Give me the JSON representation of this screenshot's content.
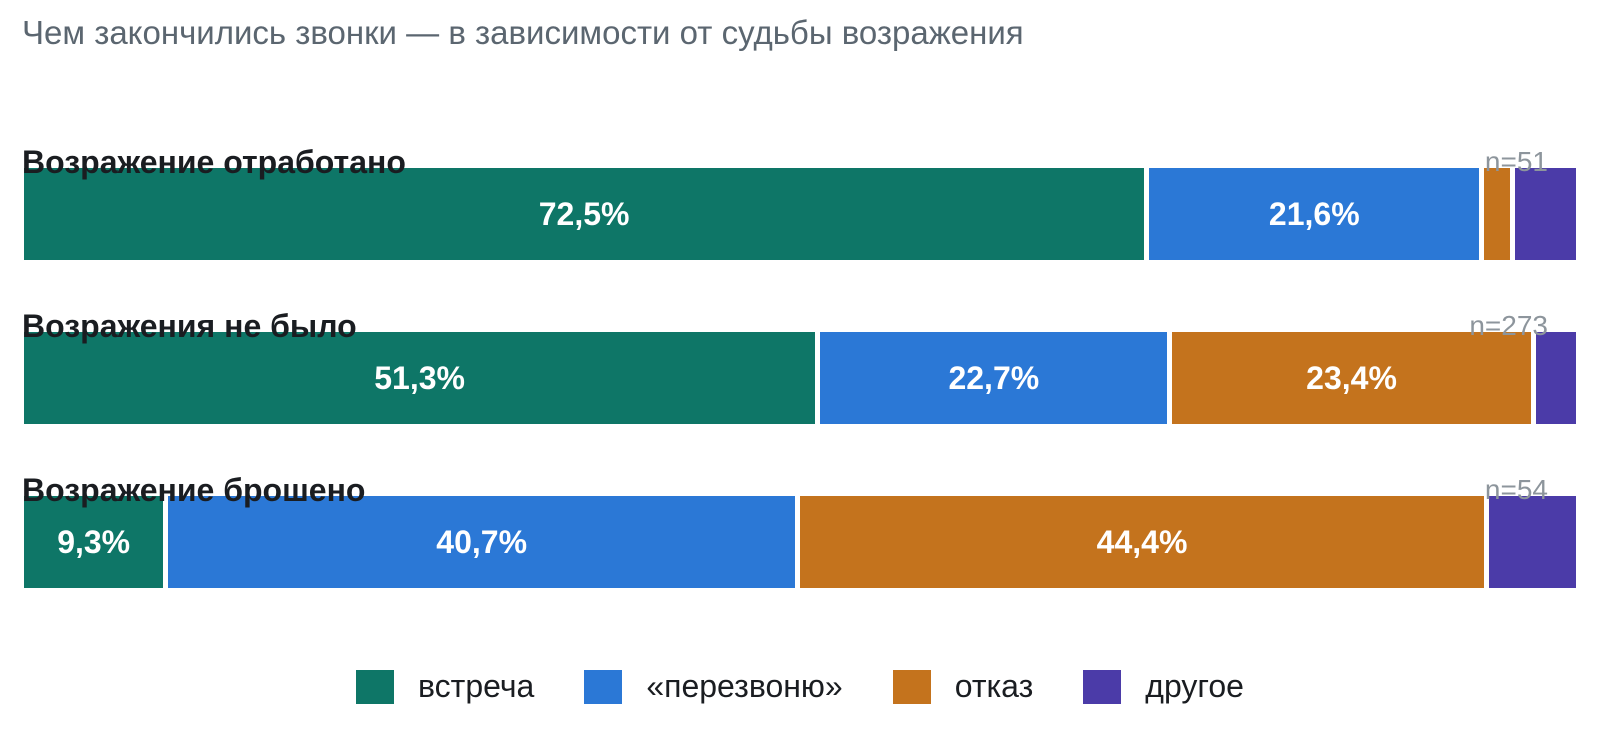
{
  "chart_data": {
    "type": "bar",
    "orientation": "horizontal",
    "stacked": "percent",
    "title": "Чем закончились звонки — в зависимости от судьбы возражения",
    "categories": [
      "Возражение отработано",
      "Возражения не было",
      "Возражение брошено"
    ],
    "sample_sizes": [
      "n=51",
      "n=273",
      "n=54"
    ],
    "series": [
      {
        "name": "встреча",
        "color": "#0e7667",
        "values": [
          72.5,
          51.3,
          9.3
        ],
        "labels": [
          "72,5%",
          "51,3%",
          "9,3%"
        ]
      },
      {
        "name": "«перезвоню»",
        "color": "#2b78d6",
        "values": [
          21.6,
          22.7,
          40.7
        ],
        "labels": [
          "21,6%",
          "22,7%",
          "40,7%"
        ]
      },
      {
        "name": "отказ",
        "color": "#c4731d",
        "values": [
          2.0,
          23.4,
          44.4
        ],
        "labels": [
          "",
          "23,4%",
          "44,4%"
        ]
      },
      {
        "name": "другое",
        "color": "#4b3ba8",
        "values": [
          3.9,
          2.6,
          5.6
        ],
        "labels": [
          "",
          "",
          ""
        ]
      }
    ],
    "xlim": [
      0,
      100
    ],
    "grid": false,
    "legend_position": "bottom-center"
  }
}
